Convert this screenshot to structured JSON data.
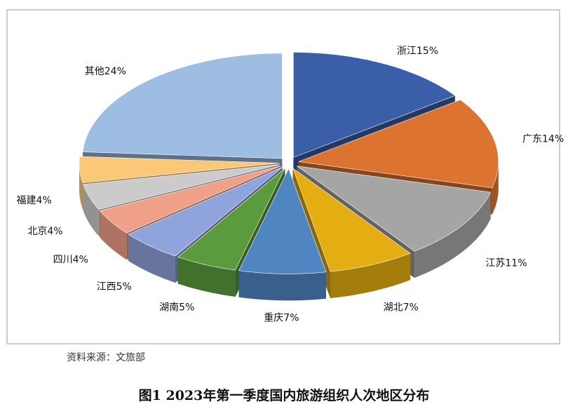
{
  "chart_data": {
    "type": "pie3d",
    "title": "图1 2023年第一季度国内旅游组织人次地区分布",
    "source": "资料来源：文旅部",
    "categories": [
      "浙江",
      "广东",
      "江苏",
      "湖北",
      "重庆",
      "湖南",
      "江西",
      "四川",
      "北京",
      "福建",
      "其他"
    ],
    "values": [
      15,
      14,
      11,
      7,
      7,
      5,
      5,
      4,
      4,
      4,
      24
    ],
    "value_labels": [
      "15%",
      "14%",
      "11%",
      "7%",
      "7%",
      "5%",
      "5%",
      "4%",
      "4%",
      "4%",
      "24%"
    ],
    "colors": [
      "#3a5ea8",
      "#dd7330",
      "#a5a5a5",
      "#e4ae12",
      "#4f86c2",
      "#5b9b3e",
      "#8fa3dc",
      "#f0a088",
      "#cbcbcb",
      "#fbc878",
      "#9dbde3"
    ]
  }
}
